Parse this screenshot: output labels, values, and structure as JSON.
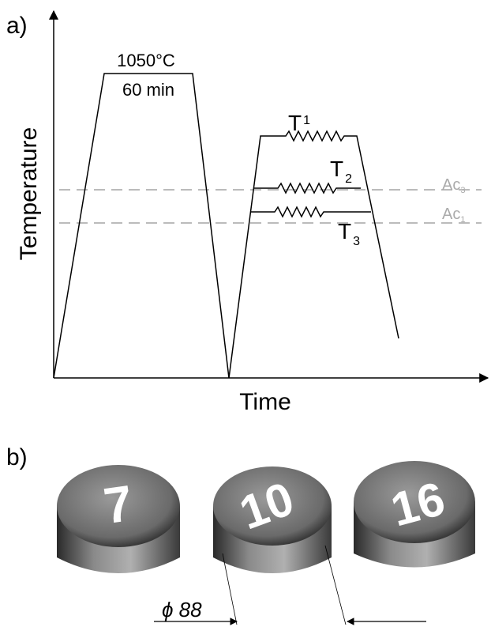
{
  "panel_a": {
    "label": "a)",
    "y_axis_label": "Temperature",
    "x_axis_label": "Time",
    "austenitizing": {
      "temperature": "1050°C",
      "time": "60 min"
    },
    "tempering": [
      {
        "text": "T",
        "sub": "1"
      },
      {
        "text": "T",
        "sub": "2"
      },
      {
        "text": "T",
        "sub": "3"
      }
    ],
    "critical_lines": [
      {
        "text": "Ac",
        "sub": "3"
      },
      {
        "text": "Ac",
        "sub": "1"
      }
    ]
  },
  "panel_b": {
    "label": "b)",
    "samples": [
      "7",
      "10",
      "16"
    ],
    "dimension": "ϕ 88"
  }
}
